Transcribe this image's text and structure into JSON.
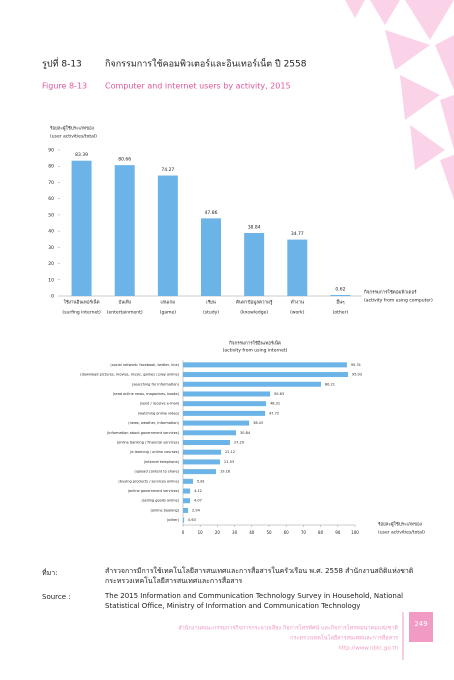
{
  "header": {
    "label_th": "รูปที่ 8-13",
    "title_th": "กิจกรรมการใช้คอมพิวเตอร์และอินเทอร์เน็ต ปี 2558",
    "label_en": "Figure 8-13",
    "title_en": "Computer and internet users by activity, 2015"
  },
  "chart_data": [
    {
      "type": "bar",
      "y_label_th": "ร้อยละผู้ใช้ประเภทของ",
      "y_label_en": "(user activities/total)",
      "x_label_th": "กิจกรรมการใช้คอมพิวเตอร์",
      "x_label_en": "(activity from using computer)",
      "categories": [
        "ใช้งานอินเทอร์เน็ต",
        "บันเทิง",
        "เล่นเกม",
        "เรียน",
        "ค้นหาข้อมูลความรู้",
        "ทำงาน",
        "อื่นๆ"
      ],
      "categories_en": [
        "(surfing internet)",
        "(entertainment)",
        "(game)",
        "(study)",
        "(knowledge)",
        "(work)",
        "(other)"
      ],
      "values": [
        83.39,
        80.66,
        74.27,
        47.86,
        38.84,
        34.77,
        0.62
      ],
      "color": "#6cb4e8",
      "ylim": [
        0,
        90
      ],
      "yticks": [
        0,
        10,
        20,
        30,
        40,
        50,
        60,
        70,
        80,
        90
      ]
    },
    {
      "type": "hbar",
      "title_th": "กิจกรรมการใช้อินเทอร์เน็ต",
      "title_en": "(activity from using internet)",
      "x_label_th": "ร้อยละผู้ใช้ประเภทของ",
      "x_label_en": "(user activities/total)",
      "categories": [
        "(social network: facebook, twitter, line)",
        "(download pictures, movies, music, games / play online)",
        "(searching for information)",
        "(read online news, magazines, books)",
        "(send / receive e-mail)",
        "(watching online video)",
        "(news, weather, information)",
        "(information about government services)",
        "(online banking / financial services)",
        "(e-learning / online courses)",
        "(internet telephone)",
        "(upload content to share)",
        "(buying products / services online)",
        "(online government services)",
        "(selling goods online)",
        "(online booking)",
        "(other)"
      ],
      "values": [
        95.31,
        95.93,
        80.21,
        50.63,
        48.31,
        47.72,
        38.43,
        30.84,
        27.29,
        22.12,
        21.53,
        19.18,
        5.81,
        4.12,
        4.07,
        2.94,
        0.63
      ],
      "color": "#6cb4e8",
      "xlim": [
        0,
        100
      ],
      "xticks": [
        0,
        10,
        20,
        30,
        40,
        50,
        60,
        70,
        80,
        90,
        100
      ]
    }
  ],
  "source": {
    "label_th": "ที่มา:",
    "text_th": "สำรวจการมีการใช้เทคโนโลยีสารสนเทศและการสื่อสารในครัวเรือน พ.ศ. 2558 สำนักงานสถิติแห่งชาติ กระทรวงเทคโนโลยีสารสนเทศและการสื่อสาร",
    "label_en": "Source :",
    "text_en": "The 2015 Information and Communication Technology Survey in Household, National Statistical Office, Ministry of Information and Communication Technology"
  },
  "footer": {
    "org_1": "สำนักงานคณะกรรมการกิจการกระจายเสียง กิจการโทรทัศน์ และกิจการโทรคมนาคมแห่งชาติ",
    "org_2": "กระทรวงเทคโนโลยีสารสนเทศและการสื่อสาร",
    "url": "http://www.nbtc.go.th",
    "page": "249"
  }
}
